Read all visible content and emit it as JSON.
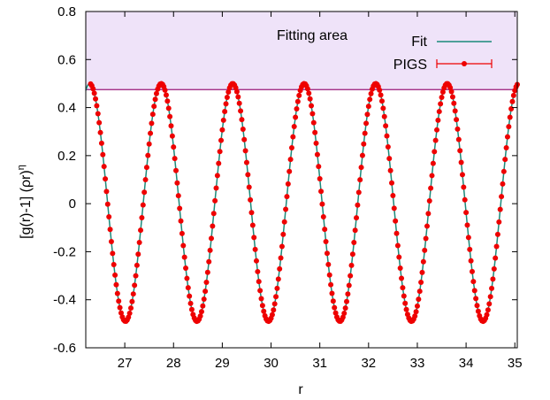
{
  "chart_data": {
    "type": "line",
    "xlabel": "r",
    "ylabel": "[g(r)-1] (ρr)^η",
    "ylabel_parts": {
      "main": "[g(r)-1] (ρr)",
      "sup": "η"
    },
    "xlim": [
      26.2,
      35.05
    ],
    "ylim": [
      -0.6,
      0.8
    ],
    "xticks": [
      "27",
      "28",
      "29",
      "30",
      "31",
      "32",
      "33",
      "34",
      "35"
    ],
    "yticks": [
      "-0.6",
      "-0.4",
      "-0.2",
      "0",
      "0.2",
      "0.4",
      "0.6",
      "0.8"
    ],
    "grid": false,
    "legend_position": "top-right",
    "fitting_area": {
      "label": "Fitting area",
      "y_from": 0.475,
      "y_to": 0.8,
      "fill": "#efe3f9",
      "line_color": "#9a1a7a"
    },
    "peaks_x": [
      26.3,
      27.75,
      29.22,
      30.68,
      32.15,
      33.62,
      35.05
    ],
    "troughs_x": [
      27.0,
      28.48,
      29.95,
      31.42,
      32.88,
      34.35
    ],
    "peak_y": 0.5,
    "trough_y": -0.49,
    "series": [
      {
        "name": "Fit",
        "color": "#1a8a7a",
        "style": "line",
        "function": "A*cos(2*pi*(r - r0)/lambda)",
        "amplitude": 0.495,
        "offset": 0.005,
        "wavelength": 1.4667,
        "phase_r0": 26.28
      },
      {
        "name": "PIGS",
        "color": "#ee0000",
        "style": "points-with-errorbars",
        "function": "A*cos(2*pi*(r - r0)/lambda)",
        "amplitude": 0.495,
        "offset": 0.005,
        "wavelength": 1.4667,
        "phase_r0": 26.28,
        "sample_step": 0.025
      }
    ]
  }
}
